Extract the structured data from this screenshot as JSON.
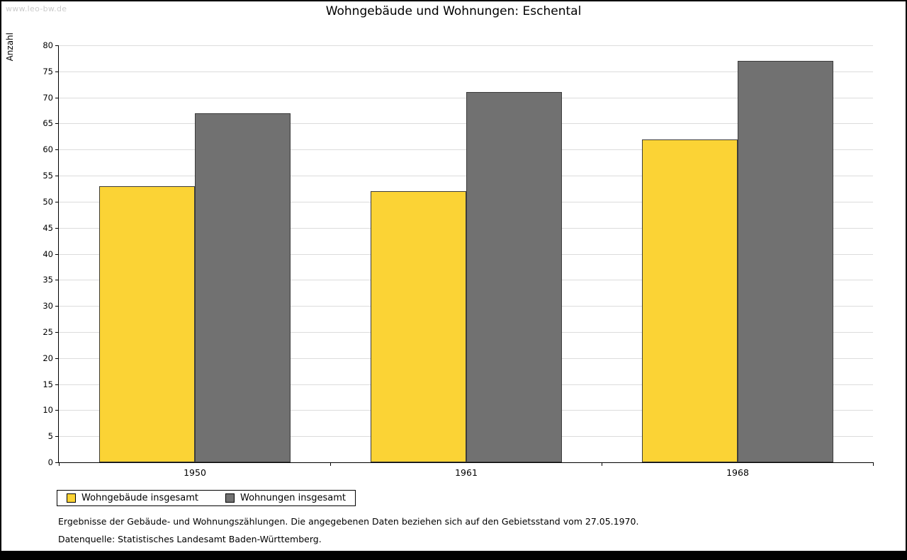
{
  "page": {
    "watermark": "www.leo-bw.de",
    "title": "Wohngebäude und Wohnungen: Eschental",
    "footnotes": [
      "Ergebnisse der Gebäude- und Wohnungszählungen. Die angegebenen Daten beziehen sich auf den Gebietsstand vom 27.05.1970.",
      "Datenquelle: Statistisches Landesamt Baden-Württemberg."
    ]
  },
  "chart_data": {
    "type": "bar",
    "title": "Wohngebäude und Wohnungen: Eschental",
    "xlabel": "",
    "ylabel": "Anzahl",
    "categories": [
      "1950",
      "1961",
      "1968"
    ],
    "series": [
      {
        "name": "Wohngebäude insgesamt",
        "color": "#FBD335",
        "values": [
          53,
          52,
          62
        ]
      },
      {
        "name": "Wohnungen insgesamt",
        "color": "#717171",
        "values": [
          67,
          71,
          77
        ]
      }
    ],
    "ylim": [
      0,
      80
    ],
    "ytick_step": 5,
    "grid": true,
    "legend_position": "bottom-left"
  }
}
